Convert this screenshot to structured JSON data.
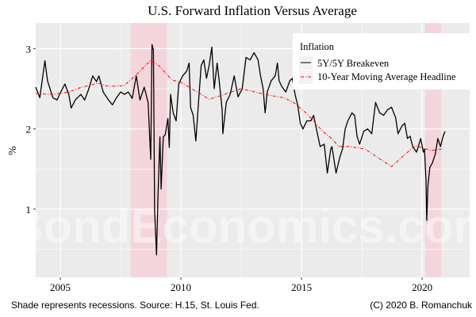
{
  "chart_data": {
    "type": "line",
    "title": "U.S. Forward Inflation Versus Average",
    "xlabel": "",
    "ylabel": "%",
    "xlim": [
      2003.98,
      2021.97
    ],
    "ylim": [
      0.15,
      3.32
    ],
    "x_ticks": [
      2005,
      2010,
      2015,
      2020
    ],
    "x_tick_labels": [
      "2005",
      "2010",
      "2015",
      "2020"
    ],
    "y_ticks": [
      1,
      2,
      3
    ],
    "y_tick_labels": [
      "1",
      "2",
      "3"
    ],
    "grid": true,
    "legend": {
      "title": "Inflation",
      "position": "top-right"
    },
    "recessions": [
      [
        2007.92,
        2009.42
      ],
      [
        2020.13,
        2020.79
      ]
    ],
    "series": [
      {
        "name": "5Y/5Y Breakeven",
        "color": "#000000",
        "style": "solid",
        "x": [
          2003.98,
          2004.15,
          2004.36,
          2004.47,
          2004.69,
          2004.86,
          2005.02,
          2005.19,
          2005.35,
          2005.45,
          2005.62,
          2005.85,
          2006.01,
          2006.17,
          2006.34,
          2006.5,
          2006.6,
          2006.78,
          2007.0,
          2007.16,
          2007.33,
          2007.5,
          2007.66,
          2007.82,
          2007.98,
          2008.15,
          2008.3,
          2008.48,
          2008.64,
          2008.75,
          2008.8,
          2008.86,
          2008.91,
          2008.99,
          2009.05,
          2009.13,
          2009.18,
          2009.27,
          2009.35,
          2009.46,
          2009.52,
          2009.57,
          2009.68,
          2009.8,
          2009.91,
          2010.07,
          2010.24,
          2010.34,
          2010.4,
          2010.51,
          2010.62,
          2010.73,
          2010.84,
          2010.95,
          2011.06,
          2011.17,
          2011.28,
          2011.38,
          2011.5,
          2011.6,
          2011.71,
          2011.74,
          2011.88,
          2012.04,
          2012.21,
          2012.37,
          2012.54,
          2012.7,
          2012.87,
          2013.03,
          2013.2,
          2013.3,
          2013.41,
          2013.49,
          2013.58,
          2013.74,
          2013.91,
          2014.0,
          2014.07,
          2014.18,
          2014.35,
          2014.51,
          2014.62,
          2014.73,
          2014.84,
          2014.95,
          2015.06,
          2015.22,
          2015.39,
          2015.5,
          2015.66,
          2015.77,
          2015.94,
          2016.07,
          2016.21,
          2016.26,
          2016.43,
          2016.59,
          2016.7,
          2016.81,
          2016.92,
          2017.09,
          2017.2,
          2017.3,
          2017.41,
          2017.58,
          2017.74,
          2017.91,
          2018.07,
          2018.24,
          2018.4,
          2018.57,
          2018.73,
          2018.9,
          2019.0,
          2019.17,
          2019.28,
          2019.39,
          2019.5,
          2019.61,
          2019.77,
          2019.94,
          2020.05,
          2020.1,
          2020.16,
          2020.19,
          2020.24,
          2020.32,
          2020.43,
          2020.54,
          2020.65,
          2020.76,
          2020.87,
          2020.95
        ],
        "values": [
          2.52,
          2.39,
          2.85,
          2.6,
          2.39,
          2.36,
          2.46,
          2.56,
          2.43,
          2.26,
          2.36,
          2.43,
          2.36,
          2.49,
          2.66,
          2.59,
          2.66,
          2.46,
          2.36,
          2.3,
          2.39,
          2.46,
          2.43,
          2.46,
          2.38,
          2.66,
          2.36,
          2.52,
          2.33,
          1.62,
          3.05,
          2.98,
          0.98,
          0.43,
          1.18,
          1.9,
          1.25,
          1.9,
          1.93,
          2.13,
          1.77,
          2.43,
          2.2,
          2.1,
          2.56,
          2.66,
          2.72,
          2.82,
          2.27,
          2.17,
          1.85,
          2.33,
          2.79,
          2.86,
          2.63,
          2.79,
          3.02,
          2.5,
          2.82,
          2.56,
          2.24,
          1.94,
          2.33,
          2.43,
          2.66,
          2.4,
          2.5,
          2.89,
          2.86,
          2.95,
          2.86,
          2.66,
          2.5,
          2.2,
          2.46,
          2.6,
          2.66,
          2.82,
          2.6,
          2.53,
          2.46,
          2.6,
          2.63,
          2.43,
          2.3,
          2.07,
          2.0,
          2.1,
          2.1,
          2.17,
          1.94,
          1.78,
          1.81,
          1.45,
          1.75,
          1.78,
          1.45,
          1.65,
          1.75,
          2.0,
          2.1,
          2.2,
          2.17,
          1.91,
          1.81,
          1.97,
          2.0,
          1.94,
          2.33,
          2.2,
          2.17,
          2.24,
          2.27,
          2.14,
          1.94,
          2.04,
          2.07,
          1.88,
          1.91,
          1.78,
          1.71,
          1.88,
          1.71,
          1.75,
          1.35,
          0.86,
          1.29,
          1.52,
          1.58,
          1.68,
          1.88,
          1.78,
          1.91,
          1.97
        ]
      },
      {
        "name": "10-Year Moving Average Headline",
        "color": "#ff0000",
        "style": "dashdot",
        "x": [
          2003.98,
          2004.69,
          2005.35,
          2005.79,
          2006.56,
          2007.0,
          2007.65,
          2008.2,
          2008.73,
          2009.08,
          2009.63,
          2010.0,
          2010.4,
          2011.17,
          2011.71,
          2012.48,
          2012.81,
          2013.47,
          2014.24,
          2014.67,
          2015.22,
          2015.88,
          2016.32,
          2016.54,
          2016.98,
          2017.63,
          2018.73,
          2019.28,
          2019.72,
          2020.38,
          2020.81
        ],
        "values": [
          2.44,
          2.43,
          2.46,
          2.51,
          2.57,
          2.53,
          2.54,
          2.69,
          2.85,
          2.79,
          2.61,
          2.58,
          2.51,
          2.37,
          2.42,
          2.5,
          2.48,
          2.43,
          2.39,
          2.33,
          2.19,
          1.97,
          1.86,
          1.78,
          1.78,
          1.75,
          1.53,
          1.68,
          1.79,
          1.73,
          1.75
        ]
      }
    ],
    "watermark": "BondEconomics.com",
    "caption_left": "Shade represents recessions. Source: H.15, St. Louis Fed.",
    "caption_right": "(C) 2020 B. Romanchuk",
    "colors": {
      "panel": "#ebebeb",
      "grid": "#ffffff",
      "recession": "#f4d5dc"
    }
  }
}
